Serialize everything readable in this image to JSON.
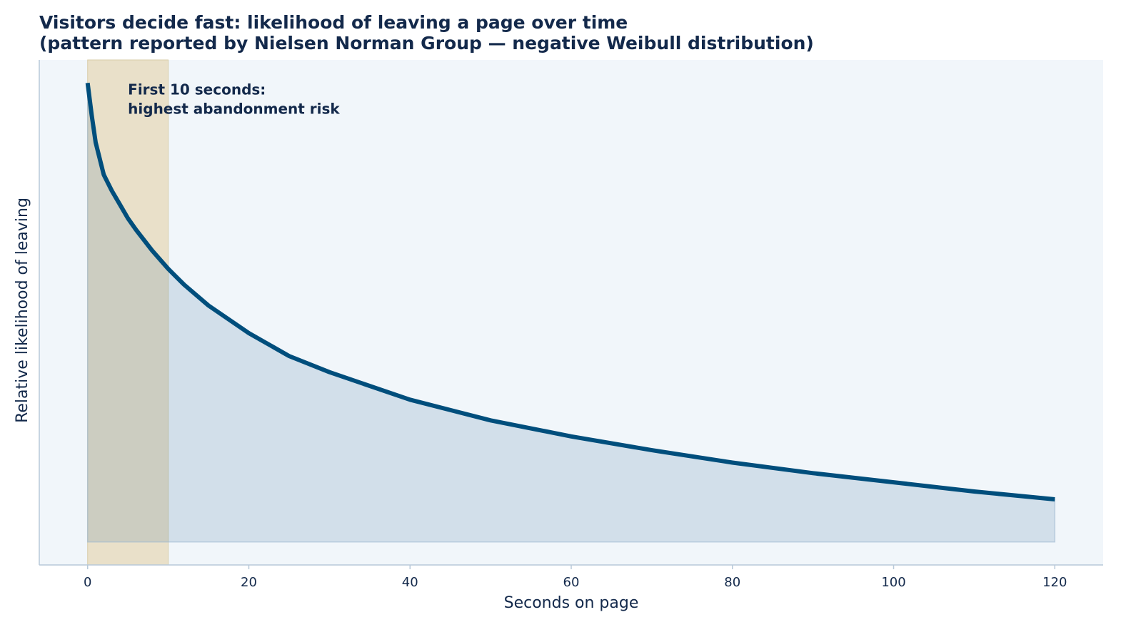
{
  "chart_data": {
    "type": "area",
    "title_lines": [
      "Visitors decide fast: likelihood of leaving a page over time",
      "(pattern reported by Nielsen Norman Group — negative Weibull distribution)"
    ],
    "xlabel": "Seconds on page",
    "ylabel": "Relative likelihood of leaving",
    "xlim": [
      -6,
      126
    ],
    "ylim": [
      -0.05,
      1.05
    ],
    "x_ticks": [
      0,
      20,
      40,
      60,
      80,
      100,
      120
    ],
    "y_ticks_shown": false,
    "grid": false,
    "legend": "none",
    "series": [
      {
        "x": [
          0,
          0.5,
          1,
          2,
          3,
          4,
          5,
          6,
          8,
          10,
          12,
          15,
          20,
          25,
          30,
          40,
          50,
          60,
          70,
          80,
          90,
          100,
          110,
          120
        ],
        "values": [
          1.0,
          0.93,
          0.87,
          0.8,
          0.765,
          0.735,
          0.705,
          0.68,
          0.635,
          0.595,
          0.56,
          0.515,
          0.455,
          0.405,
          0.37,
          0.31,
          0.265,
          0.23,
          0.2,
          0.173,
          0.15,
          0.13,
          0.11,
          0.093
        ]
      }
    ],
    "highlight_span": {
      "x_start": 0,
      "x_end": 10,
      "color": "#e8dcc0"
    },
    "annotation": {
      "lines": [
        "First 10 seconds:",
        "highest abandonment risk"
      ],
      "x": 5,
      "y": 0.99
    },
    "colors": {
      "line": "#004e7c",
      "fill": "#d5e2ec",
      "plot_background": "#f1f6fa",
      "axis": "#b8c9d9",
      "text": "#13294b",
      "highlight": "#e8dcc0"
    }
  }
}
